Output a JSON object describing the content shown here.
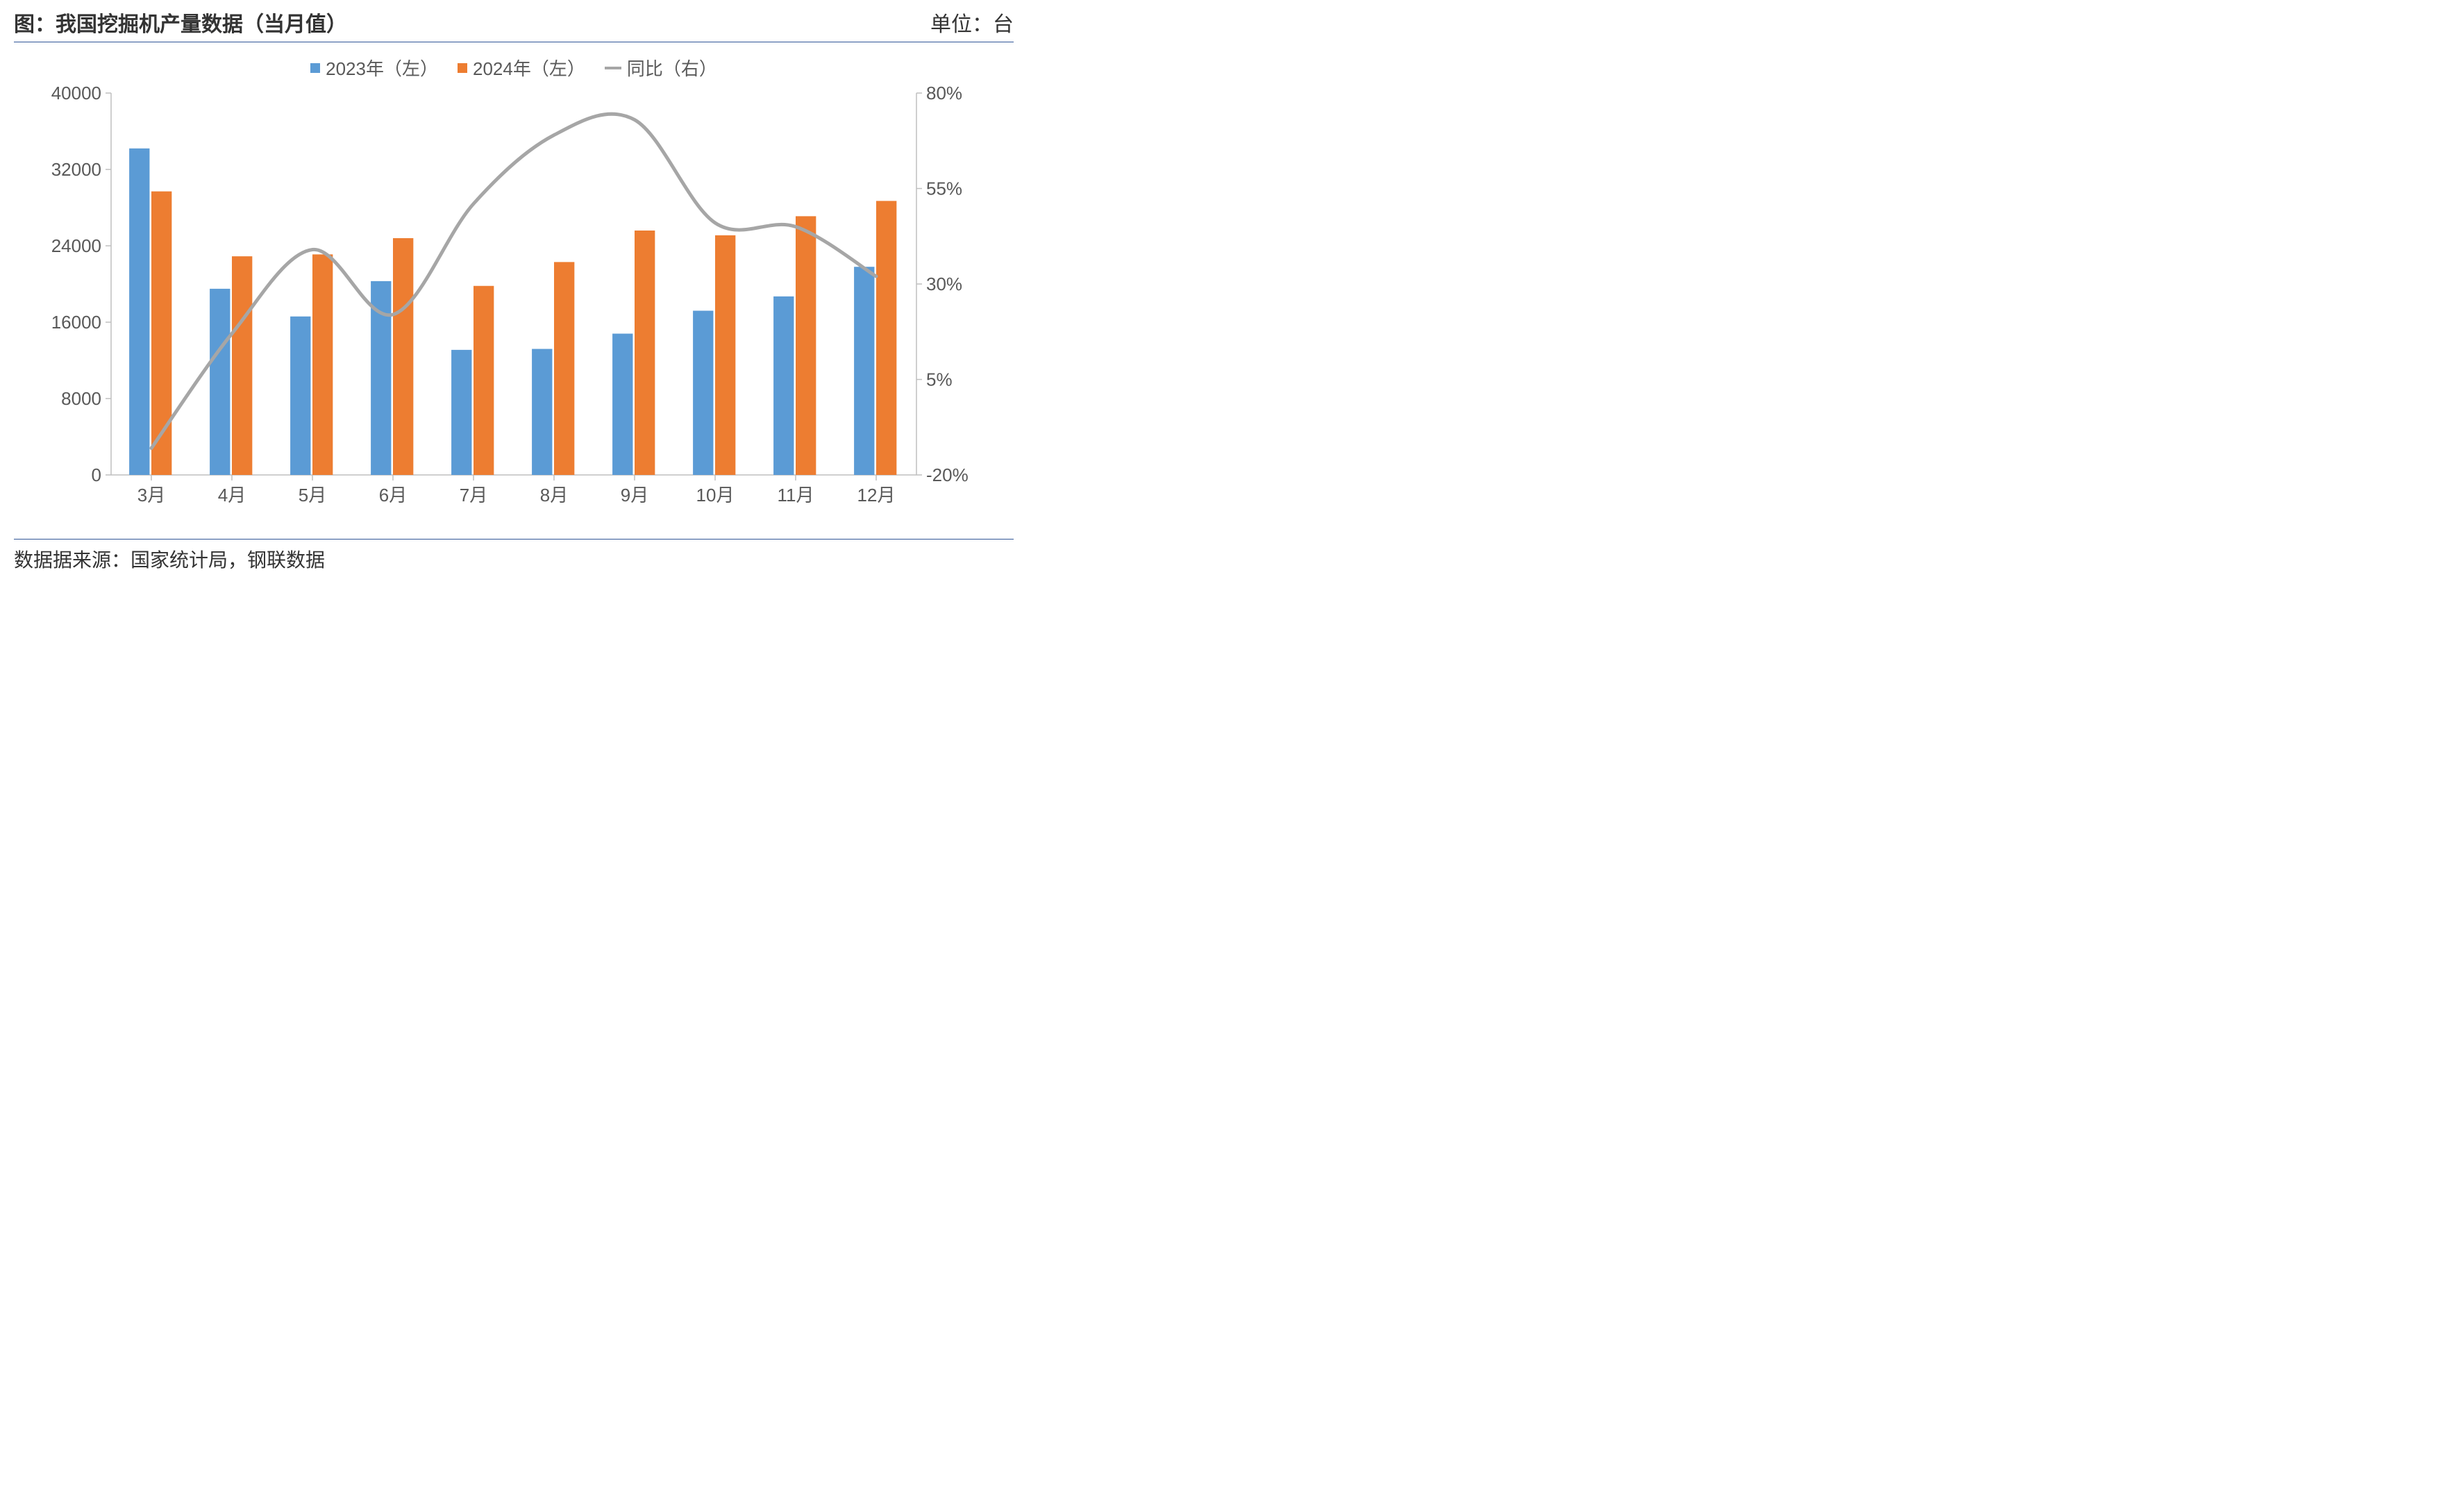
{
  "title": "图：我国挖掘机产量数据（当月值）",
  "unit": "单位：台",
  "source": "数据据来源：国家统计局，钢联数据",
  "chart": {
    "type": "bar+line",
    "categories": [
      "3月",
      "4月",
      "5月",
      "6月",
      "7月",
      "8月",
      "9月",
      "10月",
      "11月",
      "12月"
    ],
    "series": [
      {
        "name": "2023年（左）",
        "type": "bar",
        "color": "#5b9bd5",
        "values": [
          34200,
          19500,
          16600,
          20300,
          13100,
          13200,
          14800,
          17200,
          18700,
          21800
        ]
      },
      {
        "name": "2024年（左）",
        "type": "bar",
        "color": "#ed7d31",
        "values": [
          29700,
          22900,
          23100,
          24800,
          19800,
          22300,
          25600,
          25100,
          27100,
          28700
        ]
      },
      {
        "name": "同比（右）",
        "type": "line",
        "color": "#a6a6a6",
        "values": [
          -13,
          17,
          39,
          22,
          51,
          69,
          73,
          46,
          45,
          32
        ]
      }
    ],
    "y_left": {
      "min": 0,
      "max": 40000,
      "step": 8000,
      "ticks": [
        0,
        8000,
        16000,
        24000,
        32000,
        40000
      ]
    },
    "y_right": {
      "min": -20,
      "max": 80,
      "step": 25,
      "ticks": [
        -20,
        5,
        30,
        55,
        80
      ],
      "suffix": "%"
    },
    "style": {
      "background": "#ffffff",
      "axis_color": "#bfbfbf",
      "tick_color": "#bfbfbf",
      "text_color": "#595959",
      "border_color": "#2f5597",
      "axis_fontsize": 26,
      "legend_fontsize": 26,
      "title_fontsize": 30,
      "bar_group_width": 0.55,
      "line_width": 5,
      "line_smooth": true
    },
    "legend": {
      "position": "top",
      "marker_bar_size": 14,
      "marker_line_w": 24,
      "marker_line_h": 4
    }
  }
}
